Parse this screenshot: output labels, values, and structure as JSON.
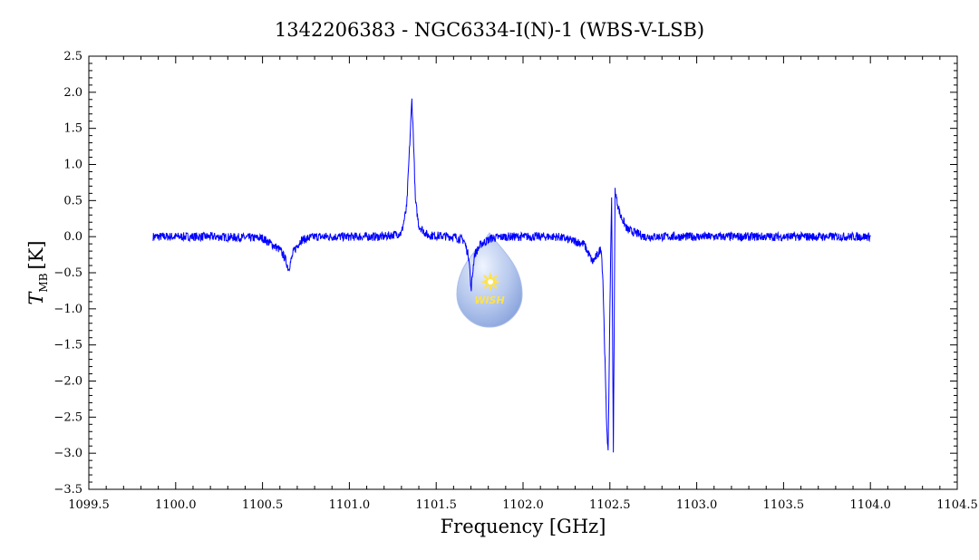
{
  "chart_data": {
    "type": "line",
    "title": "1342206383 - NGC6334-I(N)-1 (WBS-V-LSB)",
    "xlabel": "Frequency [GHz]",
    "ylabel_main": "T",
    "ylabel_sub": "MB",
    "ylabel_unit": "[K]",
    "xlim": [
      1099.5,
      1104.5
    ],
    "ylim": [
      -3.5,
      2.5
    ],
    "xticks": [
      1099.5,
      1100.0,
      1100.5,
      1101.0,
      1101.5,
      1102.0,
      1102.5,
      1103.0,
      1103.5,
      1104.0,
      1104.5
    ],
    "xtick_labels": [
      "1099.5",
      "1100.0",
      "1100.5",
      "1101.0",
      "1101.5",
      "1102.0",
      "1102.5",
      "1103.0",
      "1103.5",
      "1104.0",
      "1104.5"
    ],
    "yticks": [
      2.5,
      2.0,
      1.5,
      1.0,
      0.5,
      0.0,
      -0.5,
      -1.0,
      -1.5,
      -2.0,
      -2.5,
      -3.0,
      -3.5
    ],
    "ytick_labels": [
      "2.5",
      "2.0",
      "1.5",
      "1.0",
      "0.5",
      "0.0",
      "−0.5",
      "−1.0",
      "−1.5",
      "−2.0",
      "−2.5",
      "−3.0",
      "−3.5"
    ],
    "series": [
      {
        "color": "#0000ff",
        "x": [
          1099.87,
          1100.2,
          1100.5,
          1100.55,
          1100.6,
          1100.63,
          1100.65,
          1100.68,
          1100.72,
          1100.8,
          1101.0,
          1101.2,
          1101.3,
          1101.33,
          1101.35,
          1101.36,
          1101.37,
          1101.38,
          1101.4,
          1101.45,
          1101.6,
          1101.66,
          1101.69,
          1101.7,
          1101.72,
          1101.76,
          1101.82,
          1101.9,
          1102.2,
          1102.35,
          1102.4,
          1102.43,
          1102.45,
          1102.46,
          1102.48,
          1102.49,
          1102.5,
          1102.51,
          1102.52,
          1102.53,
          1102.54,
          1102.56,
          1102.6,
          1102.7,
          1103.0,
          1103.5,
          1104.0
        ],
        "y": [
          0.0,
          0.0,
          -0.02,
          -0.1,
          -0.18,
          -0.3,
          -0.45,
          -0.2,
          -0.05,
          0.0,
          0.0,
          0.0,
          0.05,
          0.4,
          1.4,
          1.9,
          1.3,
          0.5,
          0.15,
          0.02,
          0.0,
          -0.05,
          -0.3,
          -0.75,
          -0.25,
          -0.1,
          -0.02,
          0.0,
          0.0,
          -0.1,
          -0.35,
          -0.25,
          -0.15,
          -0.6,
          -2.5,
          -3.02,
          -1.0,
          0.6,
          -3.0,
          0.65,
          0.5,
          0.3,
          0.1,
          0.0,
          0.0,
          0.0,
          0.0
        ]
      }
    ],
    "grid": false
  },
  "watermark": {
    "text": "WISH"
  }
}
